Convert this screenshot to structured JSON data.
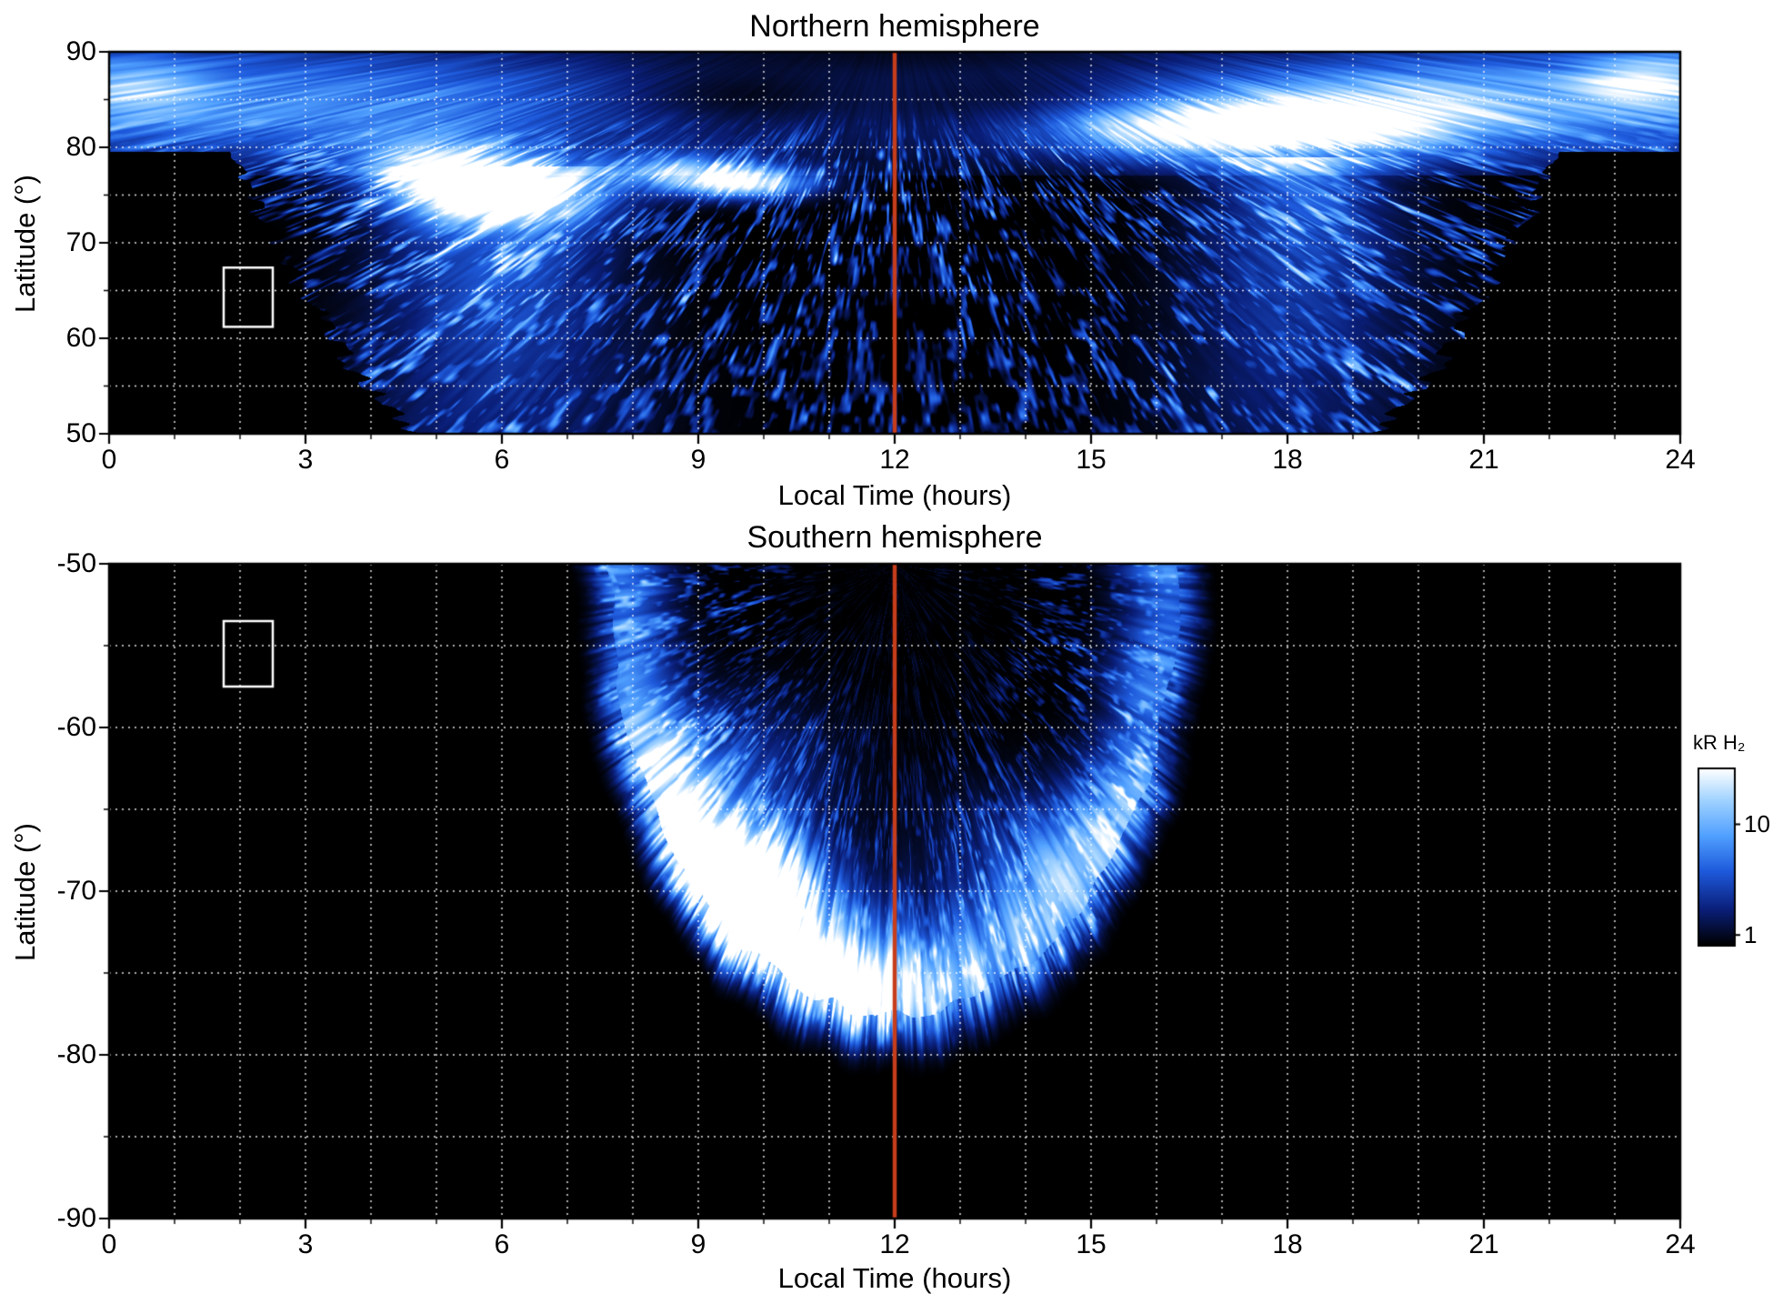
{
  "figure": {
    "background": "#ffffff",
    "colors": {
      "meridian_line": "#c63d1b",
      "grid": "#ffffff",
      "frame": "#000000",
      "highlight_box": "#ffffff",
      "text": "#000000"
    }
  },
  "chart_data": [
    {
      "type": "heatmap",
      "title": "Northern hemisphere",
      "xlabel": "Local Time (hours)",
      "ylabel": "Latitude (°)",
      "xlim": [
        0,
        24
      ],
      "ylim": [
        50,
        90
      ],
      "xticks": [
        0,
        3,
        6,
        9,
        12,
        15,
        18,
        21,
        24
      ],
      "yticks": [
        90,
        80,
        70,
        60,
        50
      ],
      "grid": {
        "x_step_hours": 1,
        "y_step_deg": 5,
        "style": "dotted",
        "color": "#ffffff"
      },
      "meridian_line_x": 12,
      "highlight_box": {
        "lt": [
          1.75,
          2.5
        ],
        "lat": [
          61.2,
          67.4
        ]
      },
      "emission": {
        "mask": {
          "full_above_lat": 79.5,
          "halfwidth_at_50": 7.25,
          "halfwidth_at_80": 10.2,
          "exponent": 0.75
        },
        "polar_band": {
          "peak_lat": 85,
          "sigma_lat": 4.5,
          "amp": 0.62,
          "min_lt_factor": 0.38,
          "dark_patches": [
            {
              "lt": 9.7,
              "slt": 1.5,
              "lat": 85.5,
              "slat": 2.8,
              "depth": 0.82
            },
            {
              "lt": 13.8,
              "slt": 1.6,
              "lat": 84.8,
              "slat": 2.8,
              "depth": 0.72
            },
            {
              "lt": 12.0,
              "slt": 3.5,
              "lat": 89.6,
              "slat": 1.2,
              "depth": 0.5
            }
          ]
        },
        "blobs": [
          {
            "lt": 6.0,
            "slt": 1.05,
            "lat": 75.4,
            "slat": 2.3,
            "amp": 1.05
          },
          {
            "lt": 4.9,
            "slt": 0.9,
            "lat": 78.2,
            "slat": 2.2,
            "amp": 0.55
          },
          {
            "lt": 9.7,
            "slt": 0.75,
            "lat": 76.3,
            "slat": 1.15,
            "amp": 0.9
          },
          {
            "lt": 8.7,
            "slt": 0.8,
            "lat": 77.5,
            "slat": 1.4,
            "amp": 0.5
          },
          {
            "lt": 17.1,
            "slt": 1.7,
            "lat": 81.9,
            "slat": 2.1,
            "amp": 0.95
          },
          {
            "lt": 19.5,
            "slt": 1.4,
            "lat": 83.5,
            "slat": 2.5,
            "amp": 0.45
          },
          {
            "lt": 23.4,
            "slt": 0.7,
            "lat": 87.0,
            "slat": 1.8,
            "amp": 0.5
          },
          {
            "lt": 0.6,
            "slt": 0.7,
            "lat": 86.0,
            "slat": 2.0,
            "amp": 0.25
          }
        ],
        "fans": [
          {
            "lt": 5.95,
            "base_sigma": 0.95,
            "widen": 0.02,
            "top_lat": 78,
            "amp_low": 0.2,
            "amp_high": 0.55
          },
          {
            "lt": 18.2,
            "base_sigma": 0.9,
            "widen": 0.018,
            "top_lat": 79,
            "amp_low": 0.15,
            "amp_high": 0.45
          }
        ],
        "speckle_amp": 0.55
      }
    },
    {
      "type": "heatmap",
      "title": "Southern hemisphere",
      "xlabel": "Local Time (hours)",
      "ylabel": "Latitude (°)",
      "xlim": [
        0,
        24
      ],
      "ylim": [
        -90,
        -50
      ],
      "xticks": [
        0,
        3,
        6,
        9,
        12,
        15,
        18,
        21,
        24
      ],
      "yticks": [
        -50,
        -60,
        -70,
        -80,
        -90
      ],
      "grid": {
        "x_step_hours": 1,
        "y_step_deg": 5,
        "style": "dotted",
        "color": "#ffffff"
      },
      "meridian_line_x": 12,
      "highlight_box": {
        "lt": [
          1.75,
          2.5
        ],
        "lat": [
          -57.5,
          -53.5
        ]
      },
      "emission": {
        "ellipse": {
          "center_lt": 12,
          "center_lat": -50,
          "rx_hours": 4.85,
          "ry_deg": 30.5
        },
        "arc": {
          "rho": 0.865,
          "sigma": 0.1,
          "amp": 0.8,
          "angular_boost": [
            {
              "theta": -0.55,
              "sigma": 0.45,
              "amp": 0.5
            },
            {
              "theta": 0.5,
              "sigma": 0.5,
              "amp": 0.25
            }
          ]
        },
        "blobs": [
          {
            "lt": 9.6,
            "slt": 0.75,
            "lat": -69.0,
            "slat": 2.3,
            "amp": 1.05
          },
          {
            "lt": 11.2,
            "slt": 0.8,
            "lat": -75.8,
            "slat": 1.8,
            "amp": 0.5
          },
          {
            "lt": 9.0,
            "slt": 1.2,
            "lat": -63.0,
            "slat": 3.0,
            "amp": 0.4
          },
          {
            "lt": 10.2,
            "slt": 1.0,
            "lat": -72.0,
            "slat": 2.5,
            "amp": 0.5
          },
          {
            "lt": 14.5,
            "slt": 1.2,
            "lat": -68.0,
            "slat": 3.0,
            "amp": 0.3
          }
        ],
        "speckle_amp": 0.42
      }
    }
  ],
  "colorbar": {
    "label": "kR H₂",
    "scale": "log",
    "range": [
      0.8,
      32
    ],
    "ticks": [
      {
        "value": 10,
        "label": "10"
      },
      {
        "value": 1,
        "label": "1"
      }
    ],
    "colormap": [
      "#000000",
      "#0a1e78",
      "#1e5adc",
      "#50a0ff",
      "#a0d2ff",
      "#ffffff"
    ],
    "colormap_positions": [
      0,
      0.2,
      0.42,
      0.62,
      0.82,
      1
    ]
  }
}
